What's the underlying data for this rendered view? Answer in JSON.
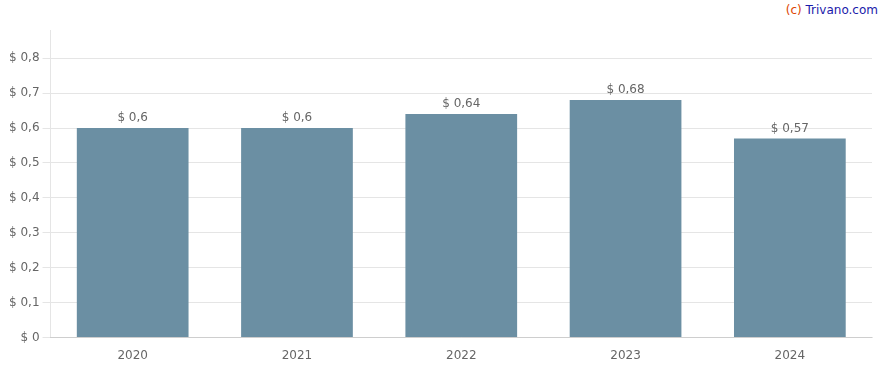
{
  "chart_data": {
    "type": "bar",
    "categories": [
      "2020",
      "2021",
      "2022",
      "2023",
      "2024"
    ],
    "values": [
      0.6,
      0.6,
      0.64,
      0.68,
      0.57
    ],
    "value_labels": [
      "$ 0,6",
      "$ 0,6",
      "$ 0,64",
      "$ 0,68",
      "$ 0,57"
    ],
    "data_labels": true,
    "color": "#6b8fa3",
    "ylim": [
      0,
      0.88
    ],
    "yticks": [
      {
        "value": 0,
        "label": "$ 0"
      },
      {
        "value": 0.1,
        "label": "$ 0,1"
      },
      {
        "value": 0.2,
        "label": "$ 0,2"
      },
      {
        "value": 0.3,
        "label": "$ 0,3"
      },
      {
        "value": 0.4,
        "label": "$ 0,4"
      },
      {
        "value": 0.5,
        "label": "$ 0,5"
      },
      {
        "value": 0.6,
        "label": "$ 0,6"
      },
      {
        "value": 0.7,
        "label": "$ 0,7"
      },
      {
        "value": 0.8,
        "label": "$ 0,8"
      }
    ],
    "grid": true,
    "annotations": [
      {
        "text": "(c) ",
        "color": "#dd4400"
      },
      {
        "text": "Trivano.com",
        "color": "#1a1aaa"
      }
    ]
  }
}
